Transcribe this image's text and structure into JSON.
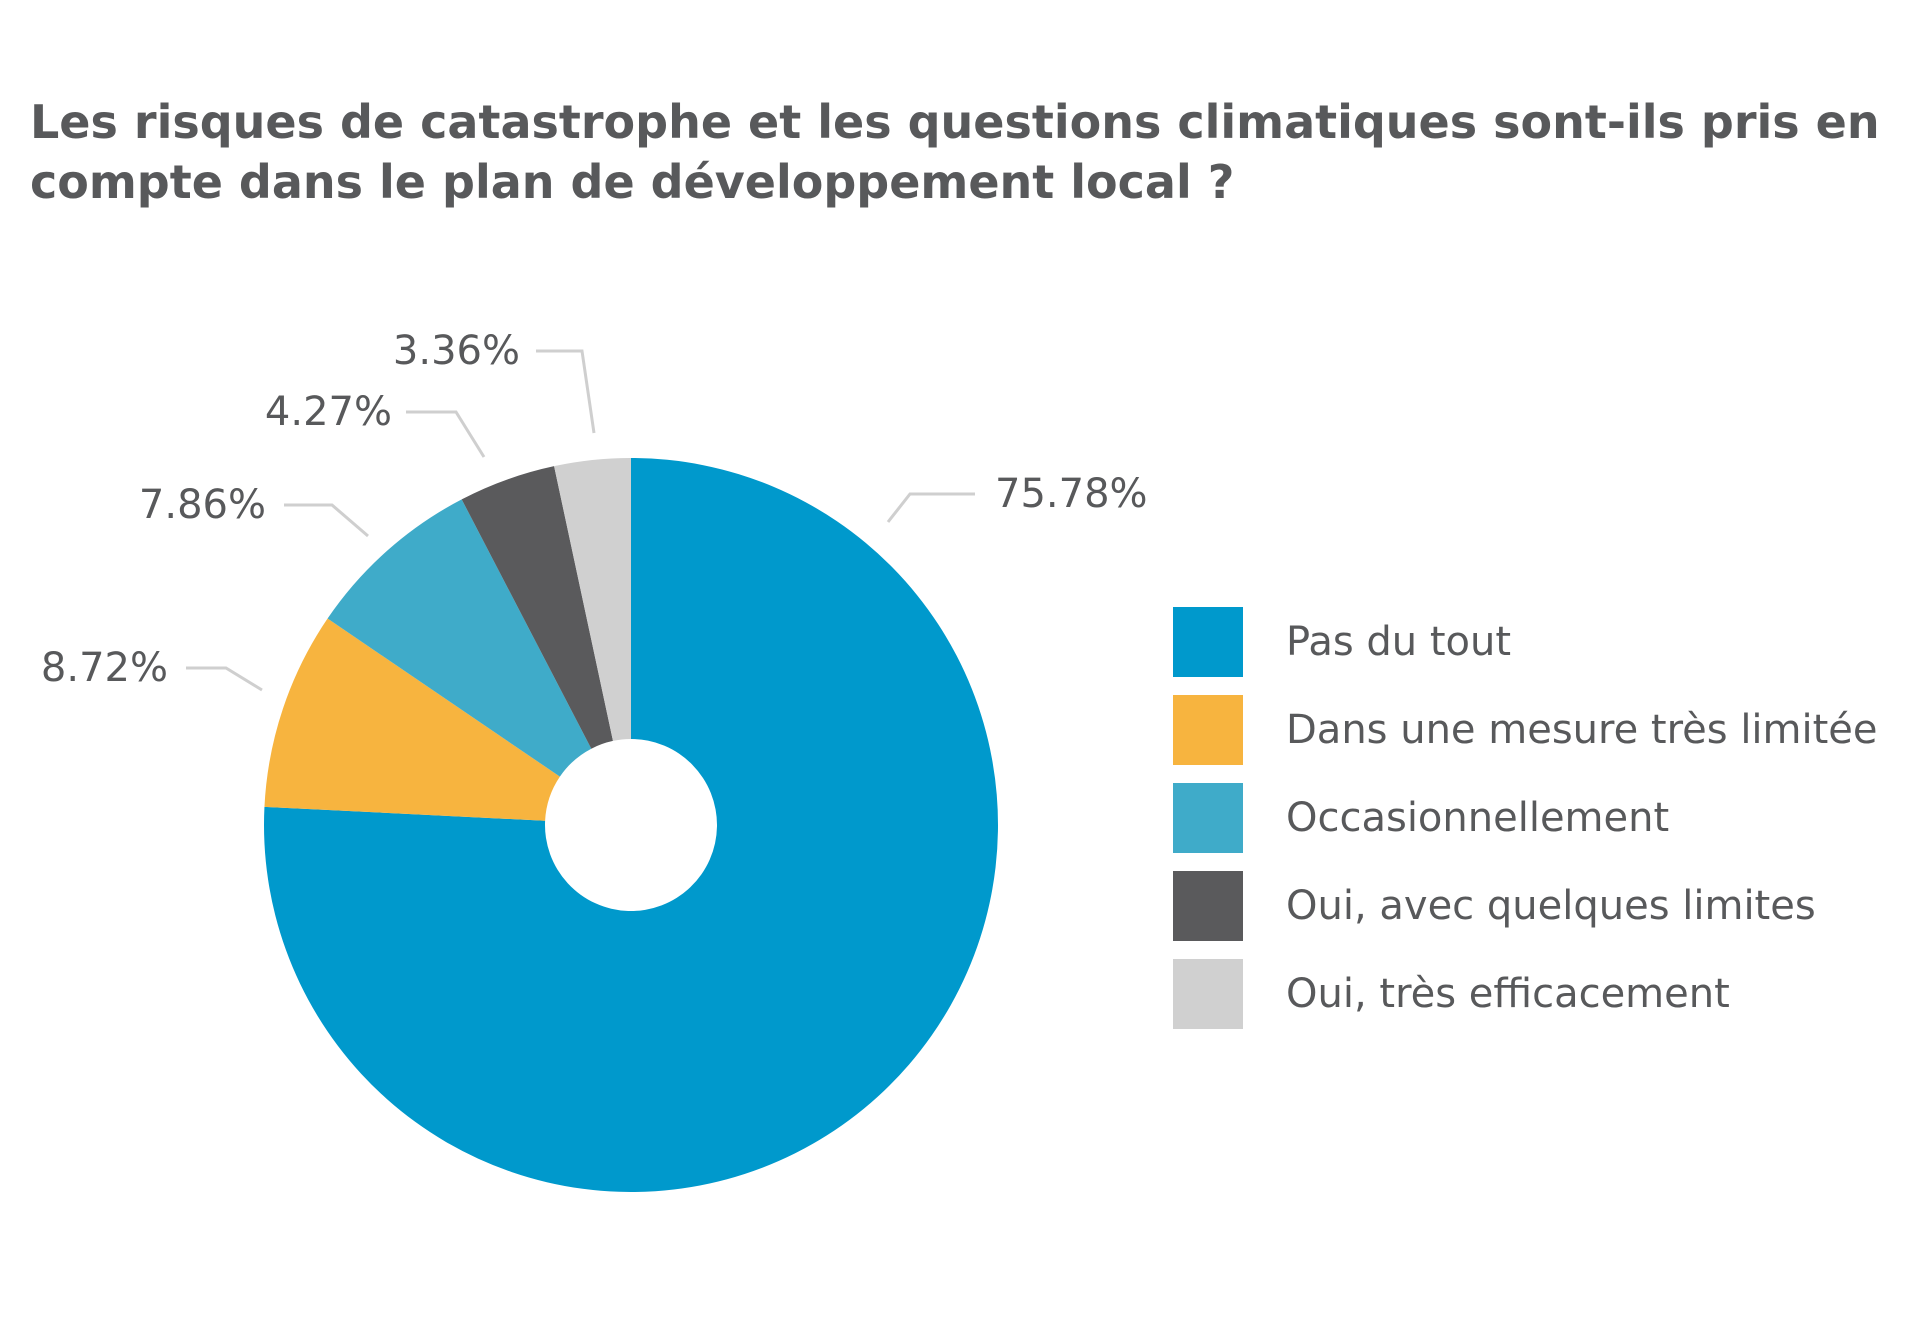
{
  "chart_data": {
    "type": "pie",
    "title": "Les risques de catastrophe et les questions climatiques sont-ils pris en compte dans le plan de développement local ?",
    "unit": "%",
    "legend_position": "right",
    "slices": [
      {
        "label": "Pas du tout",
        "value": 75.78,
        "value_label": "75.78%",
        "color": "#0099cc"
      },
      {
        "label": "Dans une mesure très limitée",
        "value": 8.72,
        "value_label": "8.72%",
        "color": "#f7b43f"
      },
      {
        "label": "Occasionnellement",
        "value": 7.86,
        "value_label": "7.86%",
        "color": "#3fabc9"
      },
      {
        "label": "Oui, avec quelques limites",
        "value": 4.27,
        "value_label": "4.27%",
        "color": "#5a5a5c"
      },
      {
        "label": "Oui, très efficacement",
        "value": 3.36,
        "value_label": "3.36%",
        "color": "#d0d0d0"
      }
    ]
  }
}
